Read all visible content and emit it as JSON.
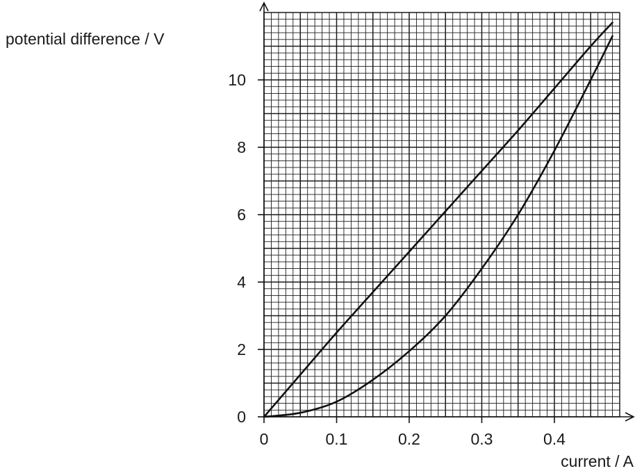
{
  "chart_data": {
    "type": "line",
    "xlabel": "current / A",
    "ylabel": "potential difference / V",
    "xlim": [
      0,
      0.49
    ],
    "ylim": [
      0,
      12
    ],
    "x_ticks": [
      "0",
      "0.1",
      "0.2",
      "0.3",
      "0.4"
    ],
    "y_ticks": [
      "0",
      "2",
      "4",
      "6",
      "8",
      "10"
    ],
    "x_tick_values": [
      0,
      0.1,
      0.2,
      0.3,
      0.4
    ],
    "y_tick_values": [
      0,
      2,
      4,
      6,
      8,
      10
    ],
    "grid": true,
    "grid_minor_x": 0.01,
    "grid_minor_y": 0.2,
    "grid_major_x": 0.05,
    "grid_major_y": 1,
    "series": [
      {
        "x": [
          0,
          0.05,
          0.1,
          0.15,
          0.2,
          0.25,
          0.3,
          0.35,
          0.4,
          0.45,
          0.48
        ],
        "y": [
          0,
          1.25,
          2.5,
          3.7,
          4.9,
          6.1,
          7.3,
          8.5,
          9.75,
          11.0,
          11.7
        ]
      },
      {
        "x": [
          0,
          0.05,
          0.1,
          0.15,
          0.2,
          0.25,
          0.3,
          0.35,
          0.4,
          0.45,
          0.48
        ],
        "y": [
          0,
          0.12,
          0.45,
          1.1,
          1.95,
          3.0,
          4.4,
          6.0,
          7.9,
          10.0,
          11.3
        ]
      }
    ],
    "line_color": "#111111",
    "grid_color": "#1a1a1a"
  }
}
